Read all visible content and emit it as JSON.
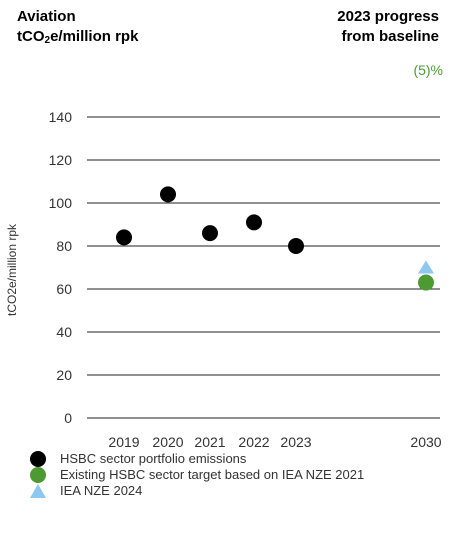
{
  "header": {
    "title_line1": "Aviation",
    "title_line2_prefix": "tCO",
    "title_line2_sub": "2",
    "title_line2_suffix": "e/million rpk",
    "progress_line1": "2023 progress",
    "progress_line2": "from baseline",
    "progress_value": "(5)%"
  },
  "colors": {
    "black": "#000000",
    "green": "#4e9a32",
    "blue": "#8ec8ee",
    "progress_text": "#4e9a32"
  },
  "chart_data": {
    "type": "scatter",
    "ylabel": "tCO2e/million rpk",
    "ylim": [
      0,
      140
    ],
    "yticks": [
      0,
      20,
      40,
      60,
      80,
      100,
      120,
      140
    ],
    "grid": true,
    "categories": [
      "2019",
      "2020",
      "2021",
      "2022",
      "2023",
      "2030"
    ],
    "series": [
      {
        "name": "HSBC sector portfolio emissions",
        "marker": "circle",
        "color": "#000000",
        "points": [
          {
            "x": "2019",
            "y": 84
          },
          {
            "x": "2020",
            "y": 104
          },
          {
            "x": "2021",
            "y": 86
          },
          {
            "x": "2022",
            "y": 91
          },
          {
            "x": "2023",
            "y": 80
          }
        ]
      },
      {
        "name": "Existing HSBC sector target based on IEA NZE 2021",
        "marker": "circle",
        "color": "#4e9a32",
        "points": [
          {
            "x": "2030",
            "y": 63
          }
        ]
      },
      {
        "name": "IEA NZE 2024",
        "marker": "triangle",
        "color": "#8ec8ee",
        "points": [
          {
            "x": "2030",
            "y": 70
          }
        ]
      }
    ]
  }
}
